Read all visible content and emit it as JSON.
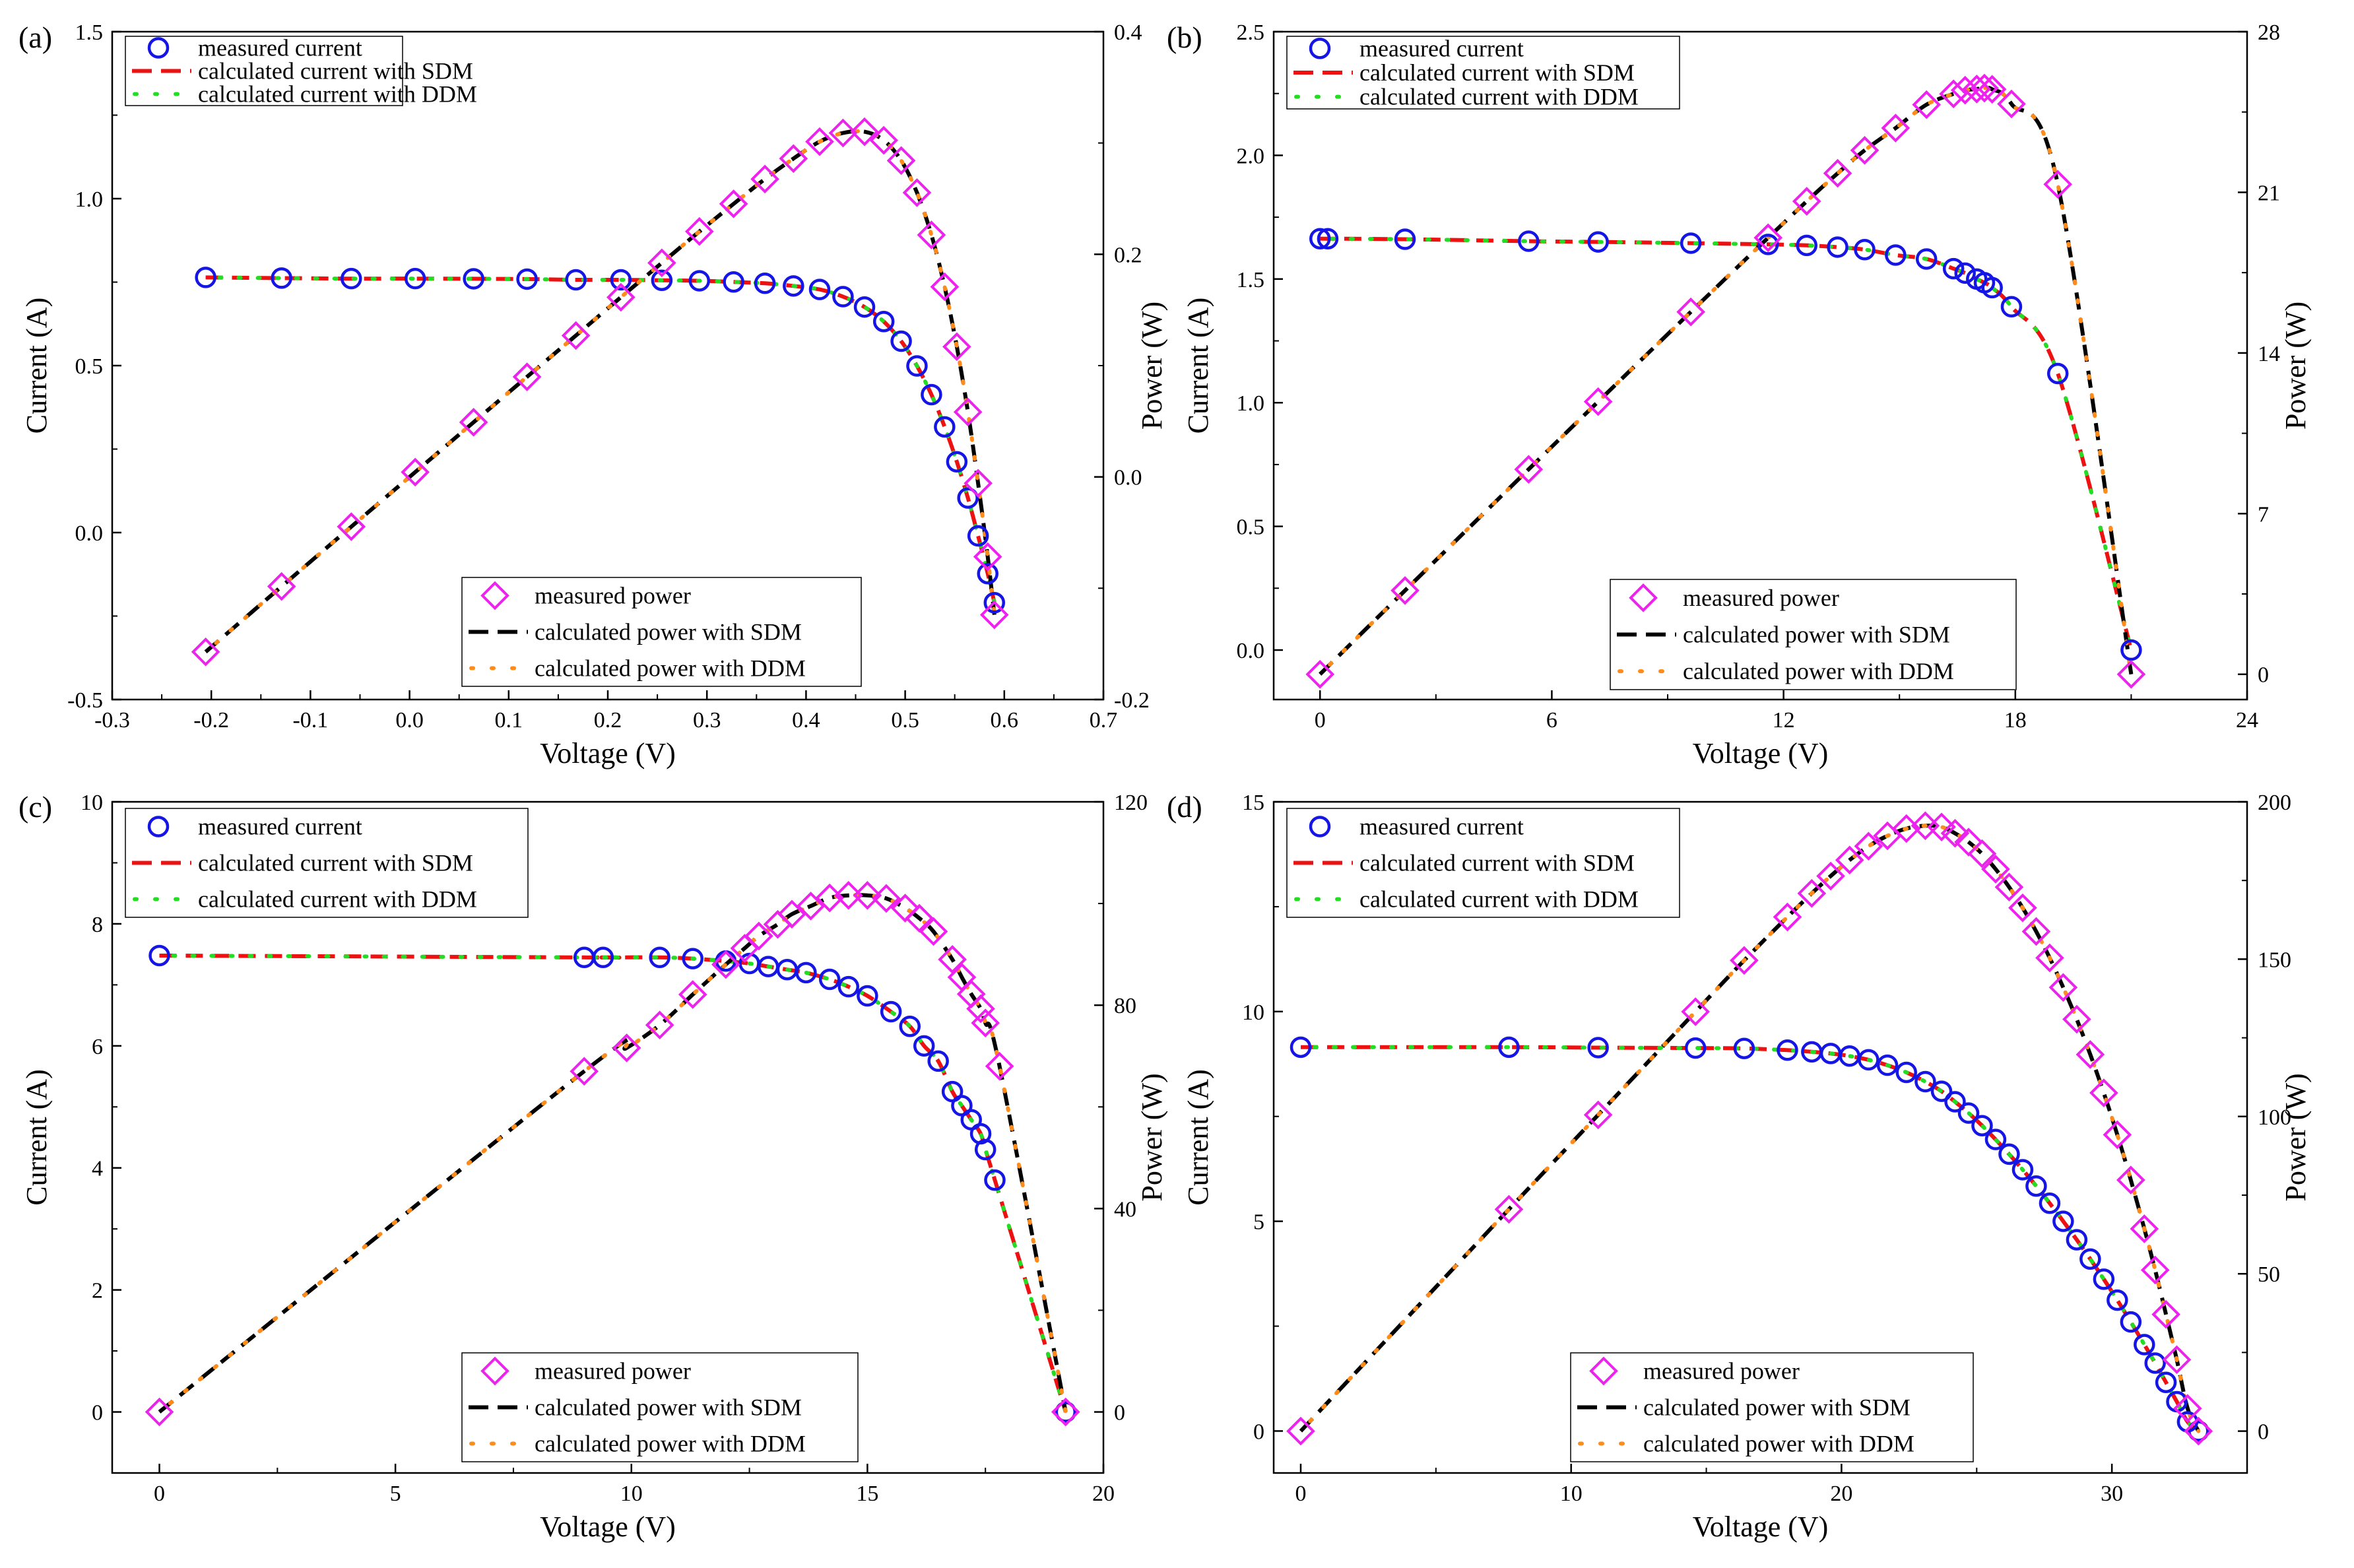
{
  "figure": {
    "legend_current_labels": [
      "measured current",
      "calculated current with SDM",
      "calculated current with DDM"
    ],
    "legend_power_labels": [
      "measured power",
      "calculated power with SDM",
      "calculated power with DDM"
    ],
    "colors": {
      "measured_current": "#1515e6",
      "sdm_current": "#ee1111",
      "ddm_current": "#22dd22",
      "measured_power": "#ee22ee",
      "sdm_power": "#000000",
      "ddm_power": "#ff8c1a"
    }
  },
  "chart_data": [
    {
      "type": "line",
      "panel_label": "(a)",
      "xlabel": "Voltage  (V)",
      "ylabel": "Current (A)",
      "y2label": "Power (W)",
      "xlim": [
        -0.3,
        0.7
      ],
      "ylim": [
        -0.5,
        1.5
      ],
      "y2lim": [
        -0.2,
        0.4
      ],
      "xticks": [
        -0.3,
        -0.2,
        -0.1,
        0.0,
        0.1,
        0.2,
        0.3,
        0.4,
        0.5,
        0.6,
        0.7
      ],
      "xtick_labels": [
        "-0.3",
        "-0.2",
        "-0.1",
        "0.0",
        "0.1",
        "0.2",
        "0.3",
        "0.4",
        "0.5",
        "0.6",
        "0.7"
      ],
      "yticks": [
        -0.5,
        0.0,
        0.5,
        1.0,
        1.5
      ],
      "ytick_labels": [
        "-0.5",
        "0.0",
        "0.5",
        "1.0",
        "1.5"
      ],
      "y2ticks": [
        -0.2,
        0.0,
        0.2,
        0.4
      ],
      "y2tick_labels": [
        "-0.2",
        "0.0",
        "0.2",
        "0.4"
      ],
      "legend_current_position": "top-left",
      "legend_power_position": "bottom-center",
      "current_series": {
        "voltage": [
          -0.2057,
          -0.1291,
          -0.0588,
          0.0057,
          0.0646,
          0.1185,
          0.1678,
          0.2132,
          0.2545,
          0.2924,
          0.3269,
          0.3585,
          0.3873,
          0.4137,
          0.4373,
          0.459,
          0.4784,
          0.496,
          0.5119,
          0.5265,
          0.5398,
          0.5521,
          0.5633,
          0.5736,
          0.5833,
          0.59
        ],
        "current": [
          0.764,
          0.762,
          0.7605,
          0.7605,
          0.76,
          0.759,
          0.757,
          0.757,
          0.7555,
          0.754,
          0.7505,
          0.7465,
          0.7385,
          0.728,
          0.7065,
          0.6755,
          0.632,
          0.573,
          0.499,
          0.413,
          0.3165,
          0.212,
          0.1035,
          -0.01,
          -0.123,
          -0.21
        ]
      },
      "power_series": {
        "voltage": [
          -0.2057,
          -0.1291,
          -0.0588,
          0.0057,
          0.0646,
          0.1185,
          0.1678,
          0.2132,
          0.2545,
          0.2924,
          0.3269,
          0.3585,
          0.3873,
          0.4137,
          0.4373,
          0.459,
          0.4784,
          0.496,
          0.5119,
          0.5265,
          0.5398,
          0.5521,
          0.5633,
          0.5736,
          0.5833,
          0.59
        ],
        "power": [
          -0.1572,
          -0.0984,
          -0.0447,
          0.0043,
          0.0491,
          0.0899,
          0.127,
          0.1614,
          0.1923,
          0.2205,
          0.2453,
          0.2676,
          0.286,
          0.3012,
          0.309,
          0.3101,
          0.3024,
          0.2842,
          0.2554,
          0.2174,
          0.1708,
          0.117,
          0.0583,
          -0.0057,
          -0.0717,
          -0.1239
        ]
      }
    },
    {
      "type": "line",
      "panel_label": "(b)",
      "xlabel": "Voltage  (V)",
      "ylabel": "Current (A)",
      "y2label": "Power (W)",
      "xlim": [
        -1.2,
        24
      ],
      "ylim": [
        -0.2,
        2.5
      ],
      "y2lim": [
        -1.1,
        28
      ],
      "xticks": [
        0,
        6,
        12,
        18,
        24
      ],
      "xtick_labels": [
        "0",
        "6",
        "12",
        "18",
        "24"
      ],
      "yticks": [
        0.0,
        0.5,
        1.0,
        1.5,
        2.0,
        2.5
      ],
      "ytick_labels": [
        "0.0",
        "0.5",
        "1.0",
        "1.5",
        "2.0",
        "2.5"
      ],
      "y2ticks": [
        0,
        7,
        14,
        21,
        28
      ],
      "y2tick_labels": [
        "0",
        "7",
        "14",
        "21",
        "28"
      ],
      "legend_current_position": "top-left",
      "legend_power_position": "bottom-right",
      "current_series": {
        "voltage": [
          0.0,
          0.2,
          2.2,
          5.4,
          7.2,
          9.6,
          11.6,
          12.6,
          13.4,
          14.1,
          14.9,
          15.7,
          16.4,
          16.7,
          17.0,
          17.2,
          17.4,
          17.9,
          19.1,
          21.0
        ],
        "current": [
          1.663,
          1.663,
          1.661,
          1.653,
          1.65,
          1.645,
          1.64,
          1.636,
          1.629,
          1.619,
          1.597,
          1.581,
          1.542,
          1.524,
          1.5,
          1.485,
          1.465,
          1.388,
          1.118,
          0.0
        ]
      },
      "power_series": {
        "voltage": [
          0.0,
          2.2,
          5.4,
          7.2,
          9.6,
          11.6,
          12.6,
          13.4,
          14.1,
          14.9,
          15.7,
          16.4,
          16.7,
          17.0,
          17.2,
          17.4,
          17.9,
          19.1,
          21.0
        ],
        "power": [
          0.0,
          3.65,
          8.93,
          11.88,
          15.79,
          19.02,
          20.61,
          21.83,
          22.83,
          23.8,
          24.82,
          25.29,
          25.45,
          25.5,
          25.54,
          25.49,
          24.85,
          21.35,
          0.0
        ]
      }
    },
    {
      "type": "line",
      "panel_label": "(c)",
      "xlabel": "Voltage (V)",
      "ylabel": "Current (A)",
      "y2label": "Power (W)",
      "xlim": [
        -1,
        20
      ],
      "ylim": [
        -1,
        10
      ],
      "y2lim": [
        -12,
        120
      ],
      "xticks": [
        0,
        5,
        10,
        15,
        20
      ],
      "xtick_labels": [
        "0",
        "5",
        "10",
        "15",
        "20"
      ],
      "yticks": [
        0,
        2,
        4,
        6,
        8,
        10
      ],
      "ytick_labels": [
        "0",
        "2",
        "4",
        "6",
        "8",
        "10"
      ],
      "y2ticks": [
        0,
        40,
        80,
        120
      ],
      "y2tick_labels": [
        "0",
        "40",
        "80",
        "120"
      ],
      "legend_current_position": "top-left",
      "legend_power_position": "bottom-right",
      "current_series": {
        "voltage": [
          0.0,
          9.0,
          9.4,
          10.6,
          11.3,
          12.0,
          12.5,
          12.9,
          13.3,
          13.7,
          14.2,
          14.6,
          15.0,
          15.5,
          15.9,
          16.2,
          16.5,
          16.8,
          17.0,
          17.2,
          17.4,
          17.5,
          17.7,
          19.2
        ],
        "current": [
          7.48,
          7.45,
          7.45,
          7.45,
          7.43,
          7.39,
          7.35,
          7.3,
          7.25,
          7.2,
          7.09,
          6.97,
          6.82,
          6.56,
          6.32,
          6.0,
          5.75,
          5.25,
          5.02,
          4.79,
          4.56,
          4.3,
          3.8,
          0.0
        ]
      },
      "power_series": {
        "voltage": [
          0.0,
          9.0,
          9.9,
          10.6,
          11.3,
          12.0,
          12.4,
          12.7,
          13.1,
          13.4,
          13.8,
          14.2,
          14.6,
          15.0,
          15.4,
          15.8,
          16.1,
          16.4,
          16.8,
          17.0,
          17.2,
          17.4,
          17.5,
          17.8,
          19.2
        ],
        "power": [
          0.0,
          67.0,
          71.6,
          76.1,
          82.1,
          88.0,
          91.2,
          93.6,
          95.9,
          97.9,
          99.5,
          101.1,
          101.6,
          101.6,
          101.0,
          99.1,
          97.1,
          94.5,
          89.0,
          85.5,
          82.2,
          79.3,
          76.5,
          68.0,
          0.0
        ]
      }
    },
    {
      "type": "line",
      "panel_label": "(d)",
      "xlabel": "Voltage  (V)",
      "ylabel": "Current (A)",
      "y2label": "Power (W)",
      "xlim": [
        -1,
        35
      ],
      "ylim": [
        -1,
        15
      ],
      "y2lim": [
        -13.3,
        200
      ],
      "xticks": [
        0,
        10,
        20,
        30
      ],
      "xtick_labels": [
        "0",
        "10",
        "20",
        "30"
      ],
      "yticks": [
        0,
        5,
        10,
        15
      ],
      "ytick_labels": [
        "0",
        "5",
        "10",
        "15"
      ],
      "y2ticks": [
        0,
        50,
        100,
        150,
        200
      ],
      "y2tick_labels": [
        "0",
        "50",
        "100",
        "150",
        "200"
      ],
      "legend_current_position": "top-left",
      "legend_power_position": "bottom-right",
      "current_series": {
        "voltage": [
          0.0,
          7.7,
          11.0,
          14.6,
          16.4,
          18.0,
          18.9,
          19.6,
          20.3,
          21.0,
          21.7,
          22.4,
          23.1,
          23.7,
          24.2,
          24.7,
          25.2,
          25.7,
          26.2,
          26.7,
          27.2,
          27.7,
          28.2,
          28.7,
          29.2,
          29.7,
          30.2,
          30.7,
          31.2,
          31.6,
          32.0,
          32.4,
          32.8,
          33.2
        ],
        "current": [
          9.15,
          9.15,
          9.14,
          9.13,
          9.12,
          9.08,
          9.04,
          9.0,
          8.94,
          8.85,
          8.72,
          8.55,
          8.33,
          8.1,
          7.85,
          7.58,
          7.28,
          6.95,
          6.6,
          6.23,
          5.84,
          5.43,
          5.0,
          4.56,
          4.1,
          3.62,
          3.12,
          2.6,
          2.06,
          1.62,
          1.16,
          0.7,
          0.22,
          0.0
        ]
      },
      "power_series": {
        "voltage": [
          0.0,
          7.7,
          11.0,
          14.6,
          16.4,
          18.0,
          18.9,
          19.6,
          20.3,
          21.0,
          21.7,
          22.4,
          23.1,
          23.7,
          24.2,
          24.7,
          25.2,
          25.7,
          26.2,
          26.7,
          27.2,
          27.7,
          28.2,
          28.7,
          29.2,
          29.7,
          30.2,
          30.7,
          31.2,
          31.6,
          32.0,
          32.4,
          32.8,
          33.2
        ],
        "power": [
          0.0,
          70.5,
          100.5,
          133.3,
          149.6,
          163.4,
          170.9,
          176.4,
          181.5,
          185.9,
          189.2,
          191.5,
          192.4,
          192.0,
          190.0,
          187.2,
          183.5,
          178.6,
          172.9,
          166.3,
          158.8,
          150.4,
          141.0,
          130.9,
          119.7,
          107.5,
          94.2,
          79.8,
          64.3,
          51.2,
          37.1,
          22.7,
          7.2,
          0.0
        ]
      }
    }
  ]
}
